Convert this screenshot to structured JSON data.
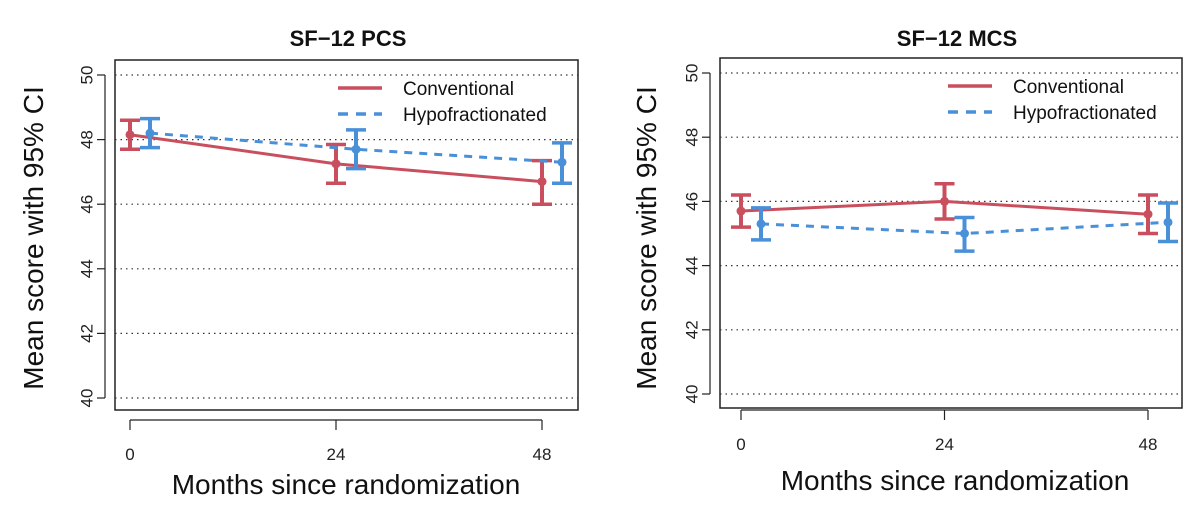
{
  "chart_data": [
    {
      "type": "line",
      "title": "SF−12 PCS",
      "xlabel": "Months since randomization",
      "ylabel": "Mean score with 95% CI",
      "x": [
        0,
        24,
        48
      ],
      "x_tick_labels": [
        "0",
        "24",
        "48"
      ],
      "ylim": [
        40,
        50
      ],
      "y_ticks": [
        40,
        42,
        44,
        46,
        48,
        50
      ],
      "y_tick_labels": [
        "40",
        "42",
        "44",
        "46",
        "48",
        "50"
      ],
      "grid": "horizontal dotted",
      "legend_position": "top-right",
      "series": [
        {
          "name": "Conventional",
          "color": "#c94f5e",
          "line_style": "solid",
          "values": [
            48.15,
            47.25,
            46.7
          ],
          "ci_lower": [
            47.7,
            46.65,
            46.0
          ],
          "ci_upper": [
            48.6,
            47.85,
            47.35
          ]
        },
        {
          "name": "Hypofractionated",
          "color": "#4a90d9",
          "line_style": "dashed",
          "values": [
            48.2,
            47.7,
            47.3
          ],
          "ci_lower": [
            47.75,
            47.1,
            46.65
          ],
          "ci_upper": [
            48.65,
            48.3,
            47.9
          ]
        }
      ]
    },
    {
      "type": "line",
      "title": "SF−12 MCS",
      "xlabel": "Months since randomization",
      "ylabel": "Mean score with 95% CI",
      "x": [
        0,
        24,
        48
      ],
      "x_tick_labels": [
        "0",
        "24",
        "48"
      ],
      "ylim": [
        40,
        50
      ],
      "y_ticks": [
        40,
        42,
        44,
        46,
        48,
        50
      ],
      "y_tick_labels": [
        "40",
        "42",
        "44",
        "46",
        "48",
        "50"
      ],
      "grid": "horizontal dotted",
      "legend_position": "top-right",
      "series": [
        {
          "name": "Conventional",
          "color": "#c94f5e",
          "line_style": "solid",
          "values": [
            45.7,
            46.0,
            45.6
          ],
          "ci_lower": [
            45.2,
            45.45,
            45.0
          ],
          "ci_upper": [
            46.2,
            46.55,
            46.2
          ]
        },
        {
          "name": "Hypofractionated",
          "color": "#4a90d9",
          "line_style": "dashed",
          "values": [
            45.3,
            45.0,
            45.35
          ],
          "ci_lower": [
            44.8,
            44.45,
            44.75
          ],
          "ci_upper": [
            45.8,
            45.5,
            45.95
          ]
        }
      ]
    }
  ]
}
